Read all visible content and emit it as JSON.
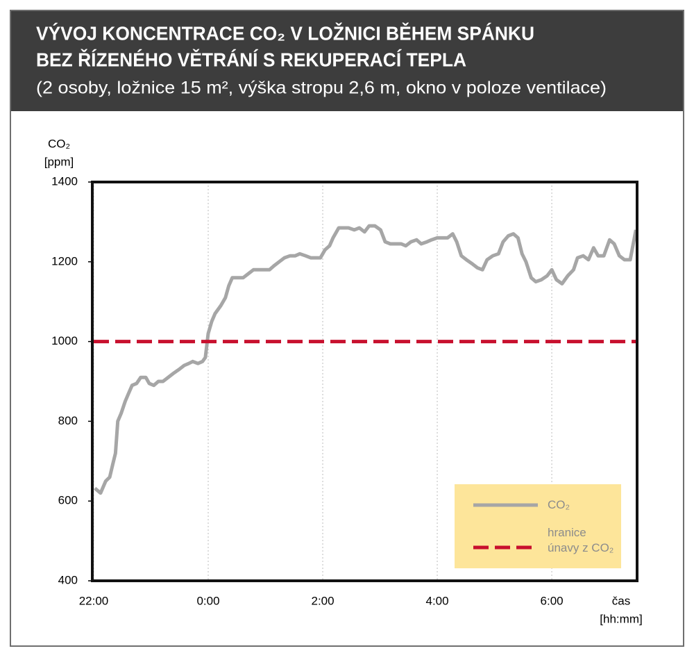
{
  "chart_data": {
    "type": "line",
    "title": [
      "VÝVOJ KONCENTRACE CO₂ V LOŽNICI BĚHEM SPÁNKU",
      "BEZ ŘÍZENÉHO VĚTRÁNÍ S REKUPERACÍ TEPLA"
    ],
    "subtitle": "(2 osoby, ložnice 15 m², výška stropu 2,6 m, okno v poloze ventilace)",
    "y_label": [
      "CO₂",
      "[ppm]"
    ],
    "x_label": [
      "čas",
      "[hh:mm]"
    ],
    "xlim": [
      0,
      9.49
    ],
    "xticks": [
      {
        "value": 0,
        "label": "22:00"
      },
      {
        "value": 2,
        "label": "0:00"
      },
      {
        "value": 4,
        "label": "2:00"
      },
      {
        "value": 6,
        "label": "4:00"
      },
      {
        "value": 8,
        "label": "6:00"
      }
    ],
    "ylim": [
      400,
      1400
    ],
    "yticks": [
      400,
      600,
      800,
      1000,
      1200,
      1400
    ],
    "series": [
      {
        "name": "CO₂",
        "color": "#a6a6a6",
        "x": [
          0.02,
          0.12,
          0.21,
          0.28,
          0.33,
          0.38,
          0.42,
          0.48,
          0.55,
          0.61,
          0.67,
          0.75,
          0.82,
          0.91,
          0.97,
          1.05,
          1.13,
          1.21,
          1.3,
          1.39,
          1.49,
          1.58,
          1.66,
          1.73,
          1.82,
          1.9,
          1.95,
          2.0,
          2.06,
          2.12,
          2.22,
          2.3,
          2.36,
          2.42,
          2.51,
          2.61,
          2.7,
          2.79,
          2.87,
          2.97,
          3.07,
          3.15,
          3.24,
          3.33,
          3.43,
          3.52,
          3.6,
          3.7,
          3.79,
          3.88,
          3.96,
          4.04,
          4.12,
          4.18,
          4.28,
          4.36,
          4.45,
          4.55,
          4.64,
          4.73,
          4.81,
          4.91,
          5.01,
          5.09,
          5.18,
          5.27,
          5.37,
          5.45,
          5.54,
          5.64,
          5.72,
          5.82,
          5.9,
          6.0,
          6.08,
          6.18,
          6.27,
          6.34,
          6.42,
          6.51,
          6.61,
          6.7,
          6.79,
          6.87,
          6.97,
          7.07,
          7.15,
          7.24,
          7.33,
          7.41,
          7.48,
          7.55,
          7.64,
          7.72,
          7.82,
          7.92,
          8.0,
          8.08,
          8.18,
          8.28,
          8.38,
          8.45,
          8.55,
          8.64,
          8.73,
          8.81,
          8.91,
          9.01,
          9.09,
          9.18,
          9.27,
          9.37,
          9.47
        ],
        "values": [
          632,
          620,
          650,
          660,
          690,
          720,
          800,
          820,
          850,
          870,
          890,
          895,
          910,
          910,
          895,
          890,
          900,
          900,
          910,
          920,
          930,
          940,
          945,
          950,
          945,
          950,
          960,
          1020,
          1050,
          1070,
          1090,
          1110,
          1140,
          1160,
          1160,
          1160,
          1170,
          1180,
          1180,
          1180,
          1180,
          1190,
          1200,
          1210,
          1215,
          1215,
          1220,
          1215,
          1210,
          1210,
          1210,
          1230,
          1240,
          1260,
          1285,
          1285,
          1285,
          1280,
          1285,
          1275,
          1290,
          1290,
          1280,
          1250,
          1245,
          1245,
          1245,
          1240,
          1250,
          1255,
          1245,
          1250,
          1255,
          1260,
          1260,
          1260,
          1270,
          1250,
          1215,
          1205,
          1195,
          1185,
          1180,
          1205,
          1215,
          1220,
          1250,
          1265,
          1270,
          1260,
          1220,
          1200,
          1160,
          1150,
          1155,
          1165,
          1180,
          1155,
          1145,
          1165,
          1180,
          1210,
          1215,
          1205,
          1235,
          1215,
          1215,
          1255,
          1245,
          1215,
          1205,
          1205,
          1280
        ]
      }
    ],
    "thresholds": [
      {
        "name": "hranice únavy z CO₂",
        "value": 1000,
        "color": "#c8102e"
      }
    ]
  }
}
